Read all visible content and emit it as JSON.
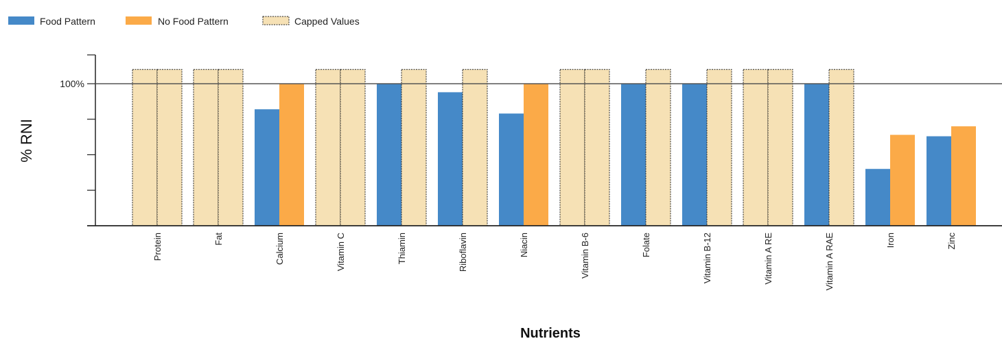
{
  "chart_data": {
    "type": "bar",
    "title": "",
    "xlabel": "Nutrients",
    "ylabel": "% RNI",
    "ylim": [
      0,
      125
    ],
    "y_ticks": [
      {
        "value": 100,
        "label": "100%"
      },
      {
        "value": 75,
        "label": ""
      },
      {
        "value": 50,
        "label": ""
      },
      {
        "value": 25,
        "label": ""
      }
    ],
    "reference_line": 100,
    "cap_value": 110,
    "legend_position": "top-left",
    "categories": [
      "Protein",
      "Fat",
      "Calcium",
      "Vitamin C",
      "Thiamin",
      "Riboflavin",
      "Niacin",
      "Vitamin B-6",
      "Folate",
      "Vitamin B-12",
      "Vitamin A RE",
      "Vitamin A RAE",
      "Iron",
      "Zinc"
    ],
    "series": [
      {
        "name": "Food Pattern",
        "color": "#4589c8",
        "values": [
          110,
          110,
          82,
          110,
          100,
          94,
          79,
          110,
          100,
          100,
          110,
          100,
          40,
          63
        ],
        "capped": [
          true,
          true,
          false,
          true,
          false,
          false,
          false,
          true,
          false,
          false,
          true,
          false,
          false,
          false
        ]
      },
      {
        "name": "No Food Pattern",
        "color": "#fbaa48",
        "values": [
          110,
          110,
          100,
          110,
          110,
          110,
          100,
          110,
          110,
          110,
          110,
          110,
          64,
          70
        ],
        "capped": [
          true,
          true,
          false,
          true,
          true,
          true,
          false,
          true,
          true,
          true,
          true,
          true,
          false,
          false
        ]
      }
    ],
    "capped_legend": {
      "name": "Capped Values",
      "color": "#f6e1b5"
    }
  }
}
